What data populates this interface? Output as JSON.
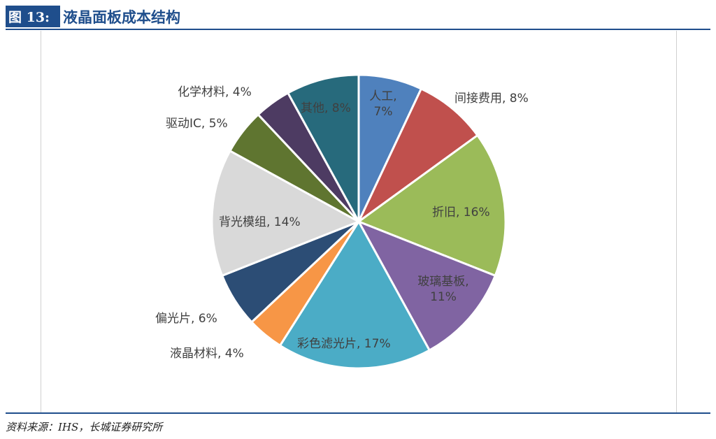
{
  "figure": {
    "label": "图 13:",
    "title": "液晶面板成本结构"
  },
  "source": "资料来源：IHS，长城证券研究所",
  "chart_data": {
    "type": "pie",
    "title": "",
    "slices": [
      {
        "name": "人工",
        "value": 7,
        "label": [
          "人工,",
          "7%"
        ],
        "color": "#4f81bd"
      },
      {
        "name": "间接费用",
        "value": 8,
        "label": [
          "间接费用, 8%"
        ],
        "color": "#c0504d"
      },
      {
        "name": "折旧",
        "value": 16,
        "label": [
          "折旧, 16%"
        ],
        "color": "#9bbb59"
      },
      {
        "name": "玻璃基板",
        "value": 11,
        "label": [
          "玻璃基板,",
          "11%"
        ],
        "color": "#8064a2"
      },
      {
        "name": "彩色滤光片",
        "value": 17,
        "label": [
          "彩色滤光片, 17%"
        ],
        "color": "#4bacc6"
      },
      {
        "name": "液晶材料",
        "value": 4,
        "label": [
          "液晶材料, 4%"
        ],
        "color": "#f79646"
      },
      {
        "name": "偏光片",
        "value": 6,
        "label": [
          "偏光片, 6%"
        ],
        "color": "#2c4d75"
      },
      {
        "name": "背光模组",
        "value": 14,
        "label": [
          "背光模组, 14%"
        ],
        "color": "#d9d9d9"
      },
      {
        "name": "驱动IC",
        "value": 5,
        "label": [
          "驱动IC, 5%"
        ],
        "color": "#5f7530"
      },
      {
        "name": "化学材料",
        "value": 4,
        "label": [
          "化学材料, 4%"
        ],
        "color": "#4d3b62"
      },
      {
        "name": "其他",
        "value": 8,
        "label": [
          "其他, 8%"
        ],
        "color": "#276a7c"
      }
    ]
  }
}
